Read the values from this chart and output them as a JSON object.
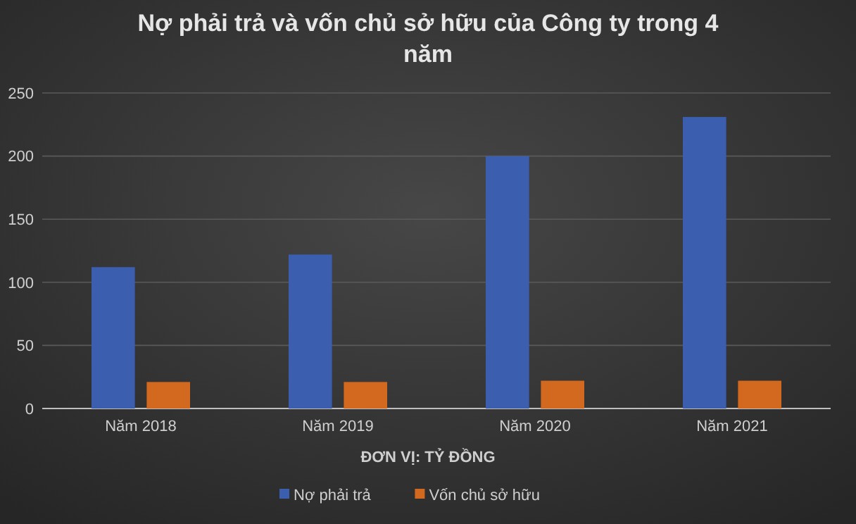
{
  "chart_data": {
    "type": "bar",
    "title": "Nợ phải trả và vốn chủ sở hữu của Công ty trong 4 năm",
    "xlabel": "ĐƠN VỊ: TỶ ĐỒNG",
    "categories": [
      "Năm 2018",
      "Năm 2019",
      "Năm 2020",
      "Năm 2021"
    ],
    "series": [
      {
        "name": "Nợ phải trả",
        "color": "#3b5fae",
        "values": [
          112,
          122,
          200,
          231
        ]
      },
      {
        "name": "Vốn chủ sở hữu",
        "color": "#d2691e",
        "values": [
          21,
          21,
          22,
          22
        ]
      }
    ],
    "ylim": [
      0,
      250
    ],
    "yticks": [
      0,
      50,
      100,
      150,
      200,
      250
    ],
    "grid": "y",
    "legend": "bottom"
  }
}
